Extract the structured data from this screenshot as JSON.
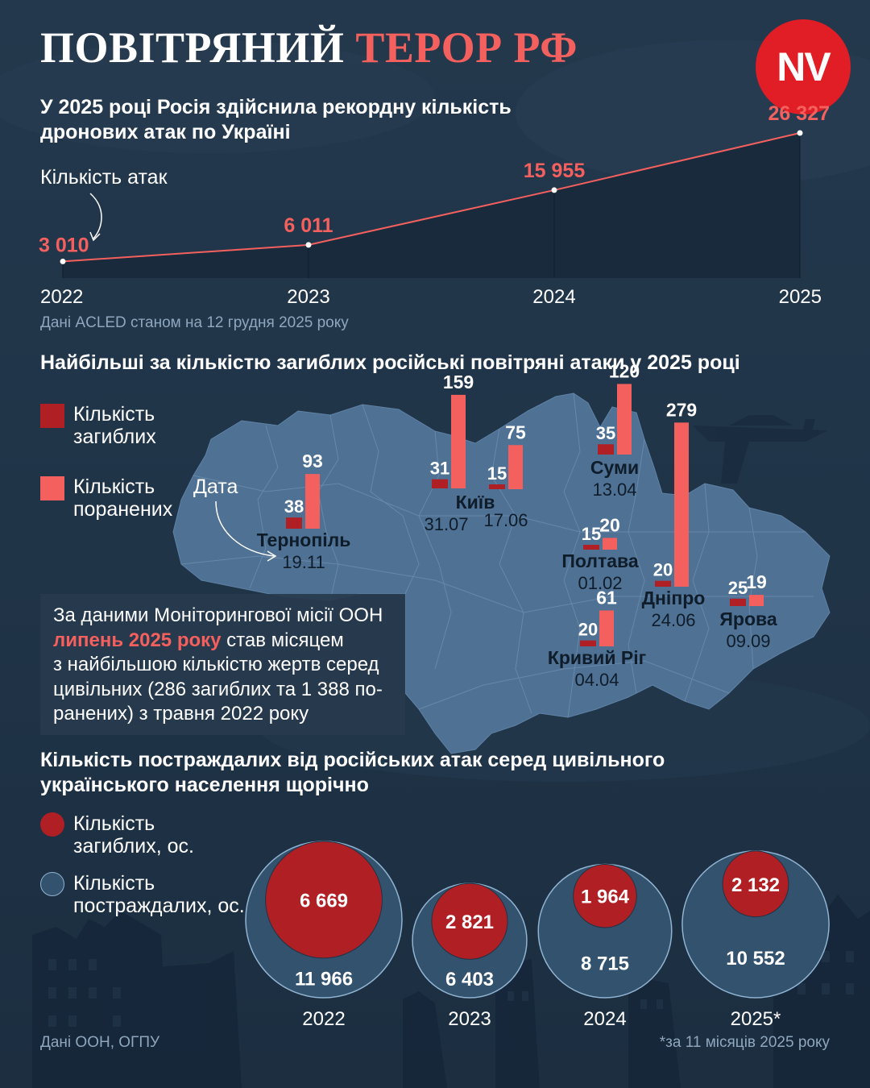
{
  "header": {
    "title_part1": "ПОВІТРЯНИЙ",
    "title_part2": "ТЕРОР РФ",
    "logo_text": "NV"
  },
  "colors": {
    "background": "#1f3347",
    "accent": "#f4605d",
    "killed": "#b01f24",
    "injured": "#f4605d",
    "map_fill": "#4f7193",
    "circle_outer": "#33526e",
    "logo_red": "#e11d25"
  },
  "line_section": {
    "title_line1": "У 2025 році Росія здійснила рекордну кількість",
    "title_line2": "дронових атак по Україні",
    "series_label": "Кількість атак",
    "source": "Дані ACLED станом на 12 грудня 2025 року"
  },
  "map_section": {
    "title": "Найбільші за кількістю загиблих російські повітряні атаки у 2025 році",
    "legend_killed_1": "Кількість",
    "legend_killed_2": "загиблих",
    "legend_injured_1": "Кількість",
    "legend_injured_2": "поранених",
    "date_label": "Дата",
    "info_part1": "За даними Моніторингової місії ООН",
    "info_highlight": "липень 2025 року",
    "info_part2": " став місяцем",
    "info_line3": "з найбільшою кількістю жертв серед",
    "info_line4": "цивільних (286 загиблих та 1 388 по-",
    "info_line5": "ранених) з травня 2022 року"
  },
  "circle_section": {
    "title_line1": "Кількість постраждалих від російських атак серед цивільного",
    "title_line2": "українського населення щорічно",
    "legend_killed_1": "Кількість",
    "legend_killed_2": "загиблих, ос.",
    "legend_total_1": "Кількість",
    "legend_total_2": "постраждалих, ос.",
    "source": "Дані ООН, ОГПУ",
    "footnote": "*за 11 місяців 2025 року"
  },
  "chart_data": [
    {
      "type": "area",
      "title": "У 2025 році Росія здійснила рекордну кількість дронових атак по Україні",
      "x": [
        "2022",
        "2023",
        "2024",
        "2025"
      ],
      "x_labels": [
        "2022",
        "2023",
        "2024",
        "2025"
      ],
      "series": [
        {
          "name": "Кількість атак",
          "values": [
            3010,
            6011,
            15955,
            26327
          ],
          "labels": [
            "3 010",
            "6 011",
            "15 955",
            "26 327"
          ]
        }
      ],
      "grid": false
    },
    {
      "type": "bar",
      "title": "Найбільші за кількістю загиблих російські повітряні атаки у 2025 році",
      "categories": [
        "Тернопіль",
        "Київ",
        "Київ",
        "Суми",
        "Полтава",
        "Дніпро",
        "Кривий Ріг",
        "Ярова"
      ],
      "dates": [
        "19.11",
        "31.07",
        "17.06",
        "13.04",
        "01.02",
        "24.06",
        "04.04",
        "09.09"
      ],
      "show_city": [
        true,
        true,
        false,
        true,
        true,
        true,
        true,
        true
      ],
      "series": [
        {
          "name": "Кількість загиблих",
          "values": [
            38,
            31,
            15,
            35,
            15,
            20,
            20,
            25
          ]
        },
        {
          "name": "Кількість поранених",
          "values": [
            93,
            159,
            75,
            120,
            20,
            279,
            61,
            19
          ]
        }
      ]
    },
    {
      "type": "bubble",
      "title": "Кількість постраждалих від російських атак серед цивільного українського населення щорічно",
      "categories": [
        "2022",
        "2023",
        "2024",
        "2025*"
      ],
      "series": [
        {
          "name": "Кількість загиблих, ос.",
          "values": [
            6669,
            2821,
            1964,
            2132
          ],
          "labels": [
            "6 669",
            "2 821",
            "1 964",
            "2 132"
          ]
        },
        {
          "name": "Кількість постраждалих, ос.",
          "values": [
            11966,
            6403,
            8715,
            10552
          ],
          "labels": [
            "11 966",
            "6 403",
            "8 715",
            "10 552"
          ]
        }
      ]
    }
  ]
}
